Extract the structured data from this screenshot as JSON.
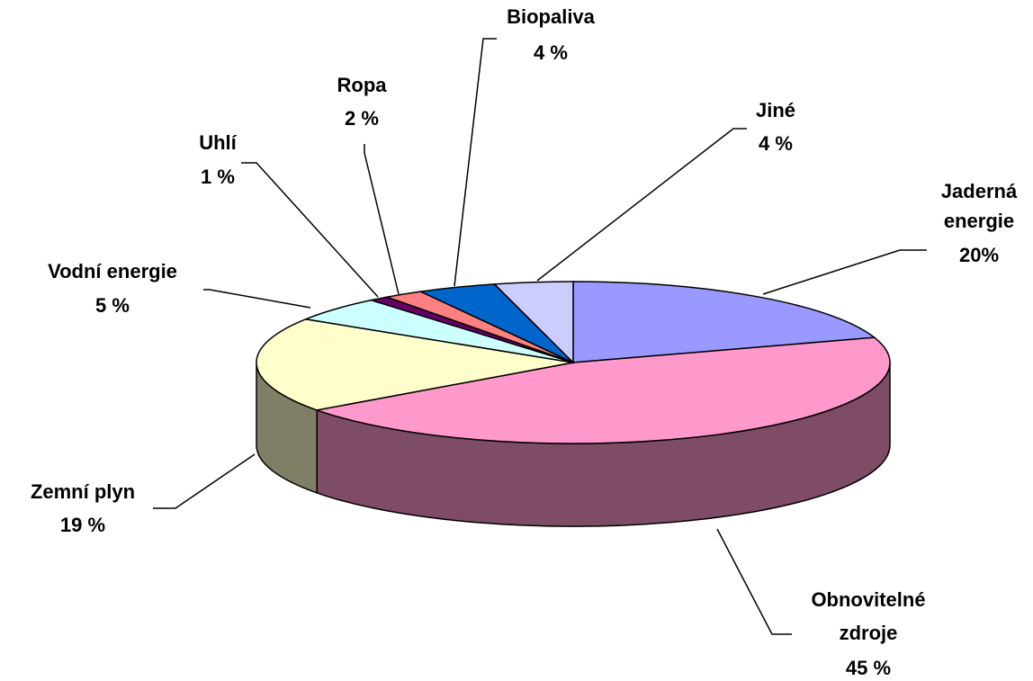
{
  "chart_data": {
    "type": "pie",
    "style": "3d",
    "categories": [
      "Jaderná energie",
      "Obnovitelné zdroje",
      "Zemní plyn",
      "Vodní energie",
      "Uhlí",
      "Ropa",
      "Biopaliva",
      "Jiné"
    ],
    "values": [
      20,
      45,
      19,
      5,
      1,
      2,
      4,
      4
    ],
    "value_labels": [
      "20%",
      "45 %",
      "19 %",
      "5 %",
      "1 %",
      "2 %",
      "4 %",
      "4 %"
    ],
    "colors": [
      "#9999ff",
      "#ff99cc",
      "#ffffcc",
      "#ccffff",
      "#660066",
      "#ff8080",
      "#0066cc",
      "#ccccff"
    ]
  }
}
